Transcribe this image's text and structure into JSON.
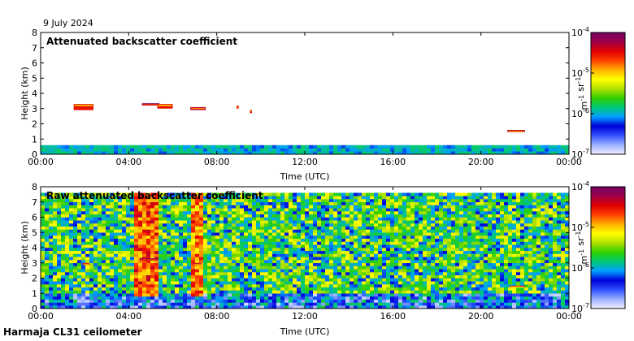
{
  "date_label": "9 July 2024",
  "footer_label": "Harmaja CL31 ceilometer",
  "colorbar": {
    "tick_labels": [
      "10-4",
      "10-5",
      "10-6",
      "10-7"
    ],
    "unit_label": "m-1 sr-1",
    "range": [
      1e-07,
      0.0001
    ],
    "scale": "log",
    "colormap": [
      "#f0f0ff",
      "#9bb0ff",
      "#3050ff",
      "#0000d8",
      "#00a0ff",
      "#00c878",
      "#30d000",
      "#b0e000",
      "#ffff00",
      "#ffb000",
      "#ff4000",
      "#e00000",
      "#a0004a",
      "#700060"
    ]
  },
  "chart_data": [
    {
      "type": "heatmap",
      "title": "Attenuated backscatter coefficient",
      "xlabel": "Time (UTC)",
      "ylabel": "Height (km)",
      "x_ticks": [
        "00:00",
        "04:00",
        "08:00",
        "12:00",
        "16:00",
        "20:00",
        "00:00"
      ],
      "y_ticks": [
        "0",
        "1",
        "2",
        "3",
        "4",
        "5",
        "6",
        "7",
        "8"
      ],
      "xlim": [
        "00:00",
        "24:00"
      ],
      "ylim": [
        0,
        8
      ],
      "grid": false,
      "features": [
        {
          "type": "boundary_layer",
          "time": [
            0,
            24
          ],
          "height_km": [
            0,
            0.6
          ],
          "level": 1e-06
        },
        {
          "type": "cloud_layer",
          "time": [
            1.5,
            2.4
          ],
          "height_km": [
            2.9,
            3.3
          ],
          "level": 3e-05
        },
        {
          "type": "cloud_layer",
          "time": [
            4.6,
            5.4
          ],
          "height_km": [
            3.2,
            3.35
          ],
          "level": 8e-05
        },
        {
          "type": "cloud_layer",
          "time": [
            5.3,
            6.0
          ],
          "height_km": [
            3.0,
            3.3
          ],
          "level": 3e-05
        },
        {
          "type": "cloud_layer",
          "time": [
            6.8,
            7.5
          ],
          "height_km": [
            2.9,
            3.1
          ],
          "level": 5e-05
        },
        {
          "type": "cloud_layer",
          "time": [
            8.9,
            9.0
          ],
          "height_km": [
            3.0,
            3.2
          ],
          "level": 3e-05
        },
        {
          "type": "cloud_layer",
          "time": [
            9.5,
            9.6
          ],
          "height_km": [
            2.7,
            2.9
          ],
          "level": 3e-05
        },
        {
          "type": "cloud_layer",
          "time": [
            21.2,
            22.0
          ],
          "height_km": [
            1.45,
            1.6
          ],
          "level": 5e-05
        }
      ]
    },
    {
      "type": "heatmap",
      "title": "Raw attenuated backscatter coefficient",
      "xlabel": "Time (UTC)",
      "ylabel": "Height (km)",
      "x_ticks": [
        "00:00",
        "04:00",
        "08:00",
        "12:00",
        "16:00",
        "20:00",
        "00:00"
      ],
      "y_ticks": [
        "0",
        "1",
        "2",
        "3",
        "4",
        "5",
        "6",
        "7",
        "8"
      ],
      "xlim": [
        "00:00",
        "24:00"
      ],
      "ylim": [
        0,
        8
      ],
      "grid": false,
      "features": [
        {
          "type": "noise_background",
          "time": [
            0,
            24
          ],
          "height_km": [
            0,
            7.6
          ],
          "level": 1e-06
        },
        {
          "type": "signal_column",
          "time": [
            4.3,
            5.3
          ],
          "height_km": [
            0,
            7.6
          ],
          "level": 2e-05
        },
        {
          "type": "signal_column",
          "time": [
            6.9,
            7.4
          ],
          "height_km": [
            0,
            7.6
          ],
          "level": 1.5e-05
        },
        {
          "type": "cloud_layer",
          "time": [
            4.5,
            5.3
          ],
          "height_km": [
            3.15,
            3.3
          ],
          "level": 8e-05
        },
        {
          "type": "cloud_layer",
          "time": [
            6.9,
            7.3
          ],
          "height_km": [
            2.9,
            3.0
          ],
          "level": 5e-05
        },
        {
          "type": "cloud_layer",
          "time": [
            1.9,
            2.2
          ],
          "height_km": [
            2.85,
            3.0
          ],
          "level": 4e-05
        },
        {
          "type": "cloud_layer",
          "time": [
            21.3,
            22.0
          ],
          "height_km": [
            1.4,
            1.5
          ],
          "level": 3e-05
        }
      ]
    }
  ]
}
